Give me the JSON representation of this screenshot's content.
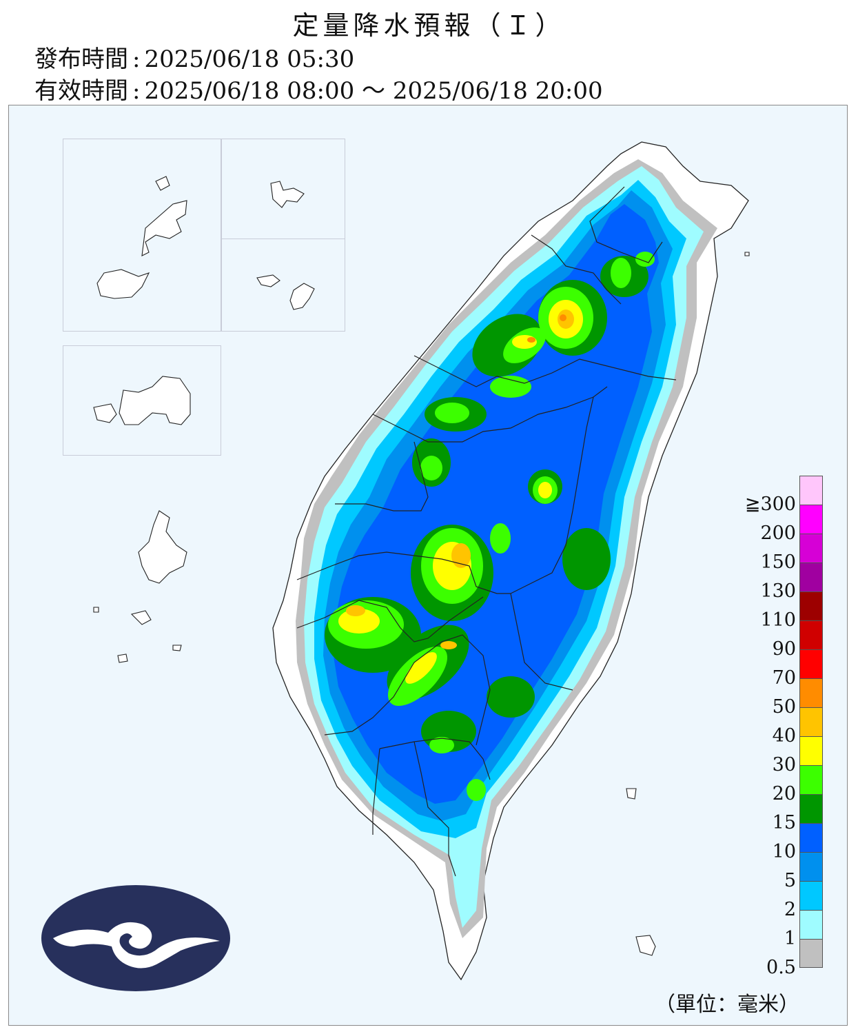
{
  "header": {
    "title": "定量降水預報（Ｉ）",
    "issue_label": "發布時間",
    "issue_time": "2025/06/18 05:30",
    "valid_label": "有效時間",
    "valid_start": "2025/06/18 08:00",
    "valid_sep": "～",
    "valid_end": "2025/06/18 20:00",
    "colon": ":"
  },
  "legend": {
    "unit": "（單位：毫米）",
    "labels": [
      "≧300",
      "200",
      "150",
      "130",
      "110",
      "90",
      "70",
      "50",
      "40",
      "30",
      "20",
      "15",
      "10",
      "5",
      "2",
      "1",
      "0.5"
    ],
    "colors": [
      "#ffc6fb",
      "#ff00ff",
      "#d600d6",
      "#a000a0",
      "#9d0000",
      "#d00000",
      "#ff0000",
      "#ff8c00",
      "#ffc400",
      "#ffff00",
      "#3cff00",
      "#009600",
      "#0060ff",
      "#0090ee",
      "#00c8ff",
      "#9ffcff",
      "#c0c0c0"
    ]
  },
  "colors": {
    "ocean": "#eef7fd",
    "land": "#ffffff",
    "logo": "#27305c"
  },
  "logo": {
    "icon": "cwa-cloud-wave-logo"
  }
}
